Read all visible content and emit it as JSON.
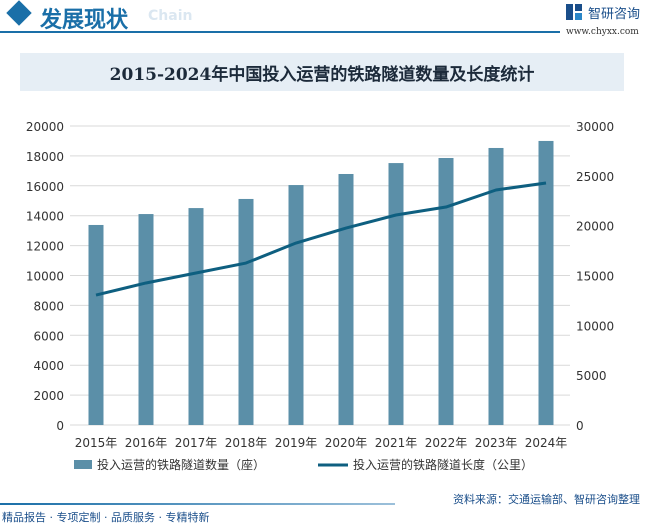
{
  "header": {
    "title": "发展现状",
    "ghost": "Chain",
    "brand": "智研咨询",
    "url": "www.chyxx.com"
  },
  "chart_data": {
    "type": "bar+line",
    "title": "2015-2024年中国投入运营的铁路隧道数量及长度统计",
    "categories": [
      "2015年",
      "2016年",
      "2017年",
      "2018年",
      "2019年",
      "2020年",
      "2021年",
      "2022年",
      "2023年",
      "2024年"
    ],
    "series": [
      {
        "name": "投入运营的铁路隧道数量（座）",
        "type": "bar",
        "axis": "left",
        "color": "#5b8fa8",
        "values": [
          13380,
          14110,
          14510,
          15120,
          16050,
          16790,
          17520,
          17860,
          18530,
          19000
        ]
      },
      {
        "name": "投入运营的铁路隧道长度（公里）",
        "type": "line",
        "axis": "right",
        "color": "#0e5f80",
        "values": [
          13040,
          14250,
          15250,
          16250,
          18260,
          19760,
          21070,
          21870,
          23580,
          24280
        ]
      }
    ],
    "ylim_left": [
      0,
      20000
    ],
    "yticks_left": [
      "0",
      "2000",
      "4000",
      "6000",
      "8000",
      "10000",
      "12000",
      "14000",
      "16000",
      "18000",
      "20000"
    ],
    "ylim_right": [
      0,
      30000
    ],
    "yticks_right": [
      "0",
      "5000",
      "10000",
      "15000",
      "20000",
      "25000",
      "30000"
    ],
    "grid": true,
    "legend": "bottom"
  },
  "footer": {
    "slogan": "精品报告 · 专项定制 · 品质服务 · 专精特新",
    "source": "资料来源：交通运输部、智研咨询整理"
  }
}
